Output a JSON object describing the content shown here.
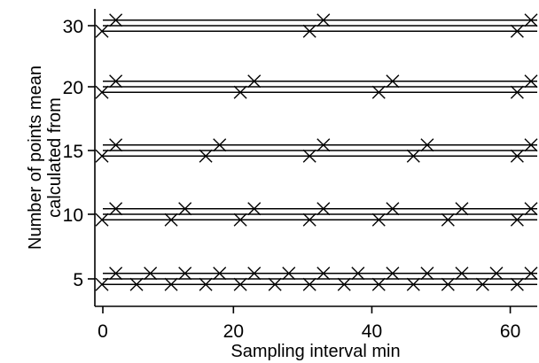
{
  "chart_data": {
    "type": "scatter",
    "xlabel": "Sampling interval  min",
    "ylabel": [
      "Number of points mean",
      "calculated from"
    ],
    "xlim": [
      0,
      64
    ],
    "ylim": [
      4,
      31
    ],
    "xticks": [
      0,
      20,
      40,
      60
    ],
    "yticks": [
      5,
      10,
      15,
      20,
      30
    ],
    "yticks_labels": [
      "5",
      "10",
      "15",
      "20",
      "30"
    ],
    "grid": false,
    "legend": "none",
    "marker": "x",
    "line_offset": 0.5,
    "series": [
      {
        "y": 5,
        "x": [
          1,
          3,
          6,
          8,
          11,
          13,
          16,
          18,
          21,
          23,
          26,
          28,
          31,
          33,
          36,
          38,
          41,
          43,
          46,
          48,
          51,
          53,
          56,
          58,
          61,
          63
        ]
      },
      {
        "y": 10,
        "x": [
          1,
          3,
          11,
          13,
          21,
          23,
          31,
          33,
          41,
          43,
          51,
          53,
          61,
          63
        ]
      },
      {
        "y": 15,
        "x": [
          1,
          3,
          16,
          18,
          31,
          33,
          46,
          48,
          61,
          63
        ]
      },
      {
        "y": 20,
        "x": [
          1,
          3,
          21,
          23,
          41,
          43,
          61,
          63
        ]
      },
      {
        "y": 30,
        "x": [
          1,
          3,
          31,
          33,
          61,
          63
        ]
      }
    ]
  }
}
